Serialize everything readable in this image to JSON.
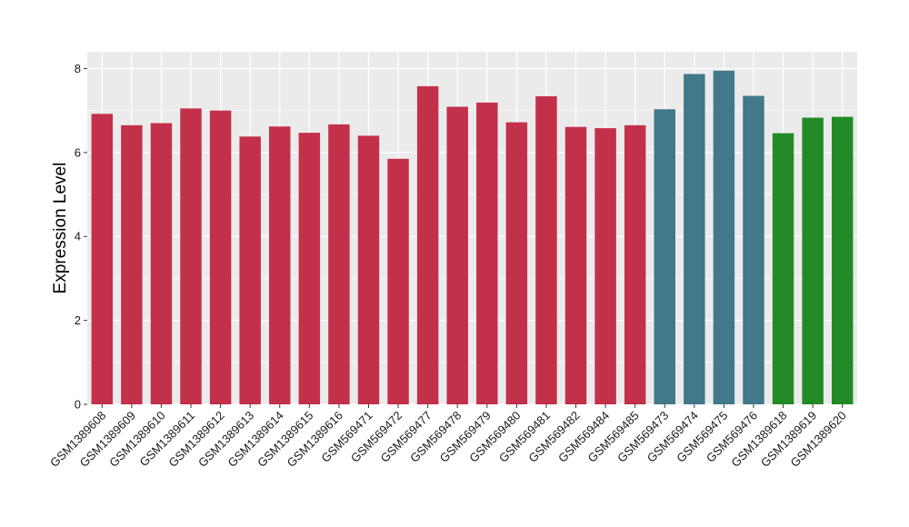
{
  "chart_data": {
    "type": "bar",
    "ylabel": "Expression Level",
    "xlabel": "",
    "ylim": [
      0,
      8.4
    ],
    "yticks": [
      0,
      2,
      4,
      6,
      8
    ],
    "grid": true,
    "background": "#EBEBEB",
    "grid_color": "#FFFFFF",
    "categories": [
      "GSM1389608",
      "GSM1389609",
      "GSM1389610",
      "GSM1389611",
      "GSM1389612",
      "GSM1389613",
      "GSM1389614",
      "GSM1389615",
      "GSM1389616",
      "GSM569471",
      "GSM569472",
      "GSM569477",
      "GSM569478",
      "GSM569479",
      "GSM569480",
      "GSM569481",
      "GSM569482",
      "GSM569484",
      "GSM569485",
      "GSM569473",
      "GSM569474",
      "GSM569475",
      "GSM569476",
      "GSM1389618",
      "GSM1389619",
      "GSM1389620"
    ],
    "values": [
      6.92,
      6.65,
      6.7,
      7.05,
      7.0,
      6.38,
      6.62,
      6.47,
      6.67,
      6.4,
      5.85,
      7.58,
      7.09,
      7.19,
      6.72,
      7.34,
      6.61,
      6.58,
      6.65,
      7.03,
      7.87,
      7.95,
      7.35,
      6.46,
      6.83,
      6.85
    ],
    "bar_colors": [
      "#C3304A",
      "#C3304A",
      "#C3304A",
      "#C3304A",
      "#C3304A",
      "#C3304A",
      "#C3304A",
      "#C3304A",
      "#C3304A",
      "#C3304A",
      "#C3304A",
      "#C3304A",
      "#C3304A",
      "#C3304A",
      "#C3304A",
      "#C3304A",
      "#C3304A",
      "#C3304A",
      "#C3304A",
      "#41788A",
      "#41788A",
      "#41788A",
      "#41788A",
      "#238B26",
      "#238B26",
      "#238B26"
    ]
  }
}
